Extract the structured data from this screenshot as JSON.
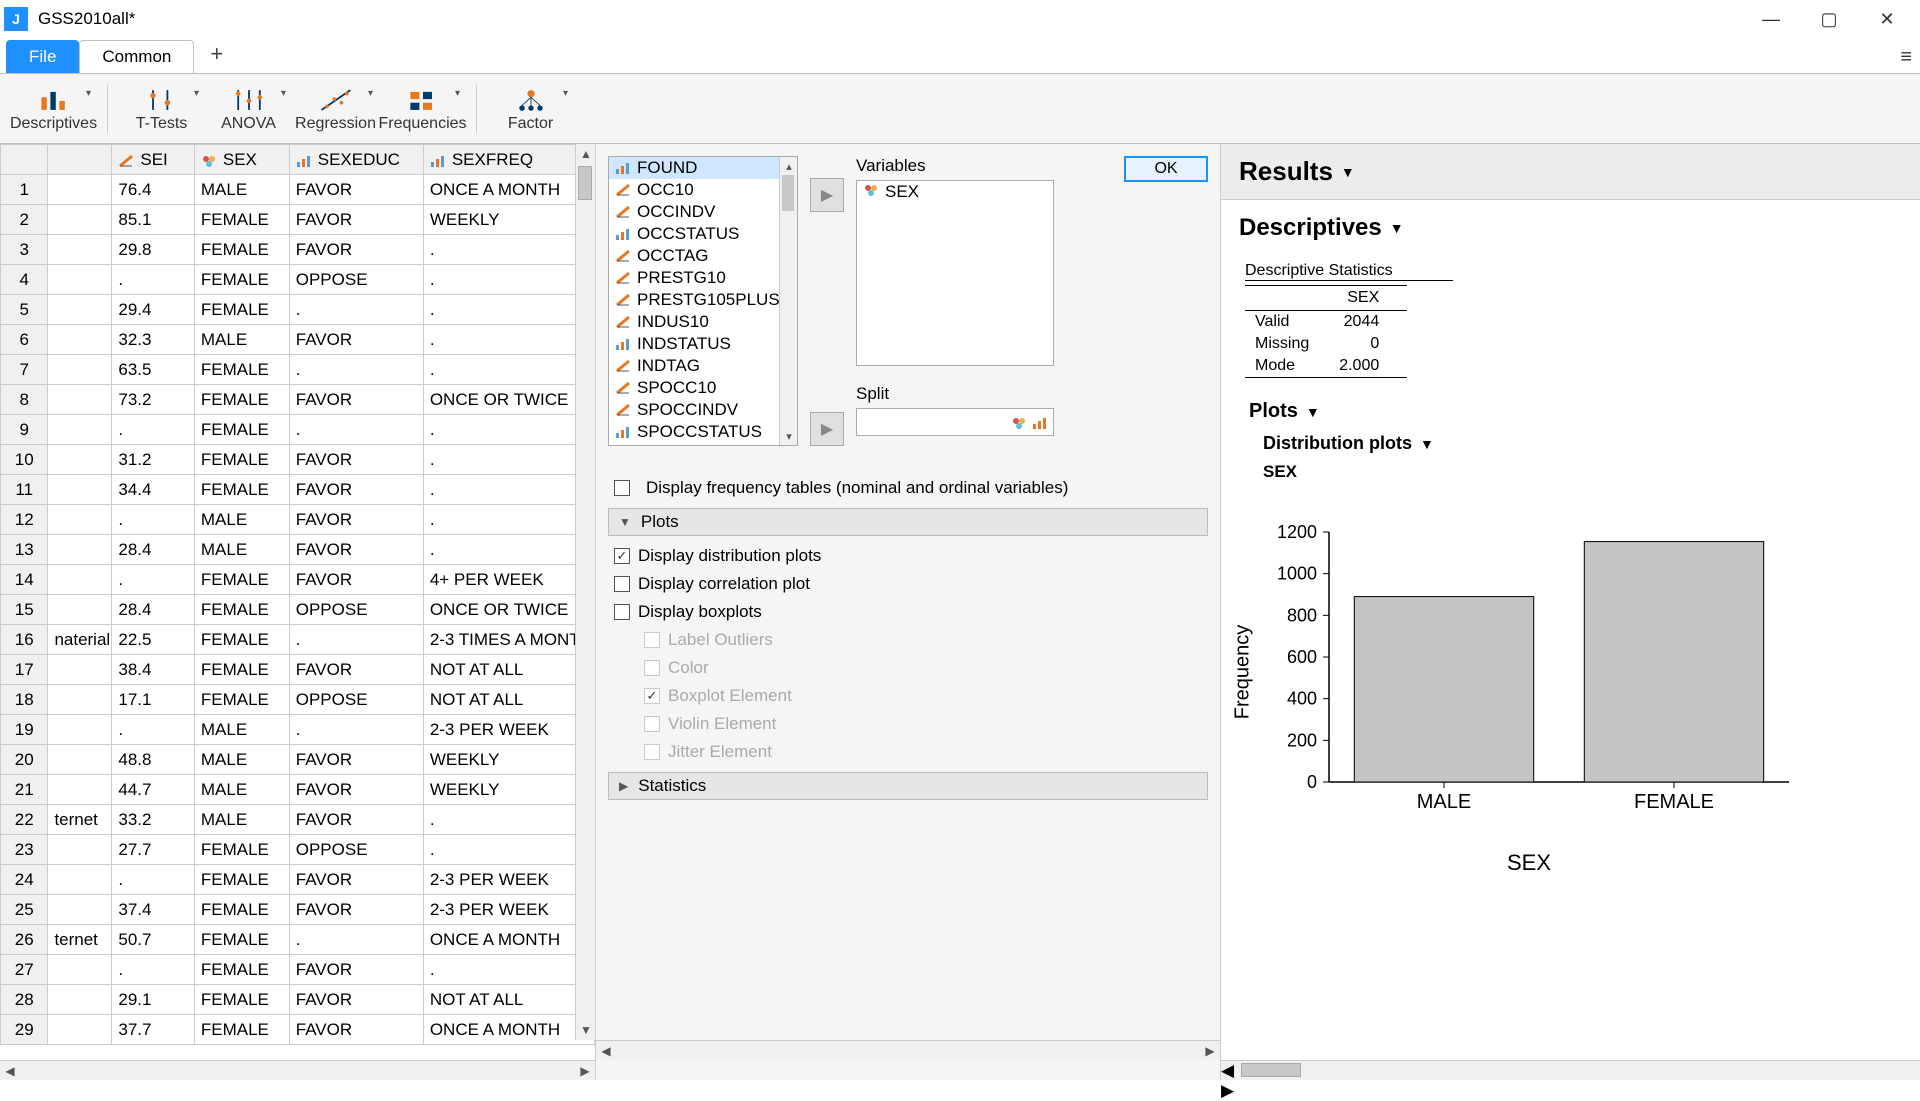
{
  "window": {
    "title": "GSS2010all*"
  },
  "tabs": {
    "file": "File",
    "common": "Common"
  },
  "ribbon": [
    {
      "label": "Descriptives"
    },
    {
      "label": "T-Tests"
    },
    {
      "label": "ANOVA"
    },
    {
      "label": "Regression"
    },
    {
      "label": "Frequencies"
    },
    {
      "label": "Factor"
    }
  ],
  "grid": {
    "extraCol": "",
    "columns": [
      {
        "name": "SEI",
        "type": "scale"
      },
      {
        "name": "SEX",
        "type": "nominal"
      },
      {
        "name": "SEXEDUC",
        "type": "ordinal"
      },
      {
        "name": "SEXFREQ",
        "type": "ordinal"
      }
    ],
    "rows": [
      {
        "n": 1,
        "c0": "",
        "sei": "76.4",
        "sex": "MALE",
        "sexeduc": "FAVOR",
        "sexfreq": "ONCE A MONTH"
      },
      {
        "n": 2,
        "c0": "",
        "sei": "85.1",
        "sex": "FEMALE",
        "sexeduc": "FAVOR",
        "sexfreq": "WEEKLY"
      },
      {
        "n": 3,
        "c0": "",
        "sei": "29.8",
        "sex": "FEMALE",
        "sexeduc": "FAVOR",
        "sexfreq": "."
      },
      {
        "n": 4,
        "c0": "",
        "sei": ".",
        "sex": "FEMALE",
        "sexeduc": "OPPOSE",
        "sexfreq": "."
      },
      {
        "n": 5,
        "c0": "",
        "sei": "29.4",
        "sex": "FEMALE",
        "sexeduc": ".",
        "sexfreq": "."
      },
      {
        "n": 6,
        "c0": "",
        "sei": "32.3",
        "sex": "MALE",
        "sexeduc": "FAVOR",
        "sexfreq": "."
      },
      {
        "n": 7,
        "c0": "",
        "sei": "63.5",
        "sex": "FEMALE",
        "sexeduc": ".",
        "sexfreq": "."
      },
      {
        "n": 8,
        "c0": "",
        "sei": "73.2",
        "sex": "FEMALE",
        "sexeduc": "FAVOR",
        "sexfreq": "ONCE OR TWICE"
      },
      {
        "n": 9,
        "c0": "",
        "sei": ".",
        "sex": "FEMALE",
        "sexeduc": ".",
        "sexfreq": "."
      },
      {
        "n": 10,
        "c0": "",
        "sei": "31.2",
        "sex": "FEMALE",
        "sexeduc": "FAVOR",
        "sexfreq": "."
      },
      {
        "n": 11,
        "c0": "",
        "sei": "34.4",
        "sex": "FEMALE",
        "sexeduc": "FAVOR",
        "sexfreq": "."
      },
      {
        "n": 12,
        "c0": "",
        "sei": ".",
        "sex": "MALE",
        "sexeduc": "FAVOR",
        "sexfreq": "."
      },
      {
        "n": 13,
        "c0": "",
        "sei": "28.4",
        "sex": "MALE",
        "sexeduc": "FAVOR",
        "sexfreq": "."
      },
      {
        "n": 14,
        "c0": "",
        "sei": ".",
        "sex": "FEMALE",
        "sexeduc": "FAVOR",
        "sexfreq": "4+ PER WEEK"
      },
      {
        "n": 15,
        "c0": "",
        "sei": "28.4",
        "sex": "FEMALE",
        "sexeduc": "OPPOSE",
        "sexfreq": "ONCE OR TWICE"
      },
      {
        "n": 16,
        "c0": "naterial",
        "sei": "22.5",
        "sex": "FEMALE",
        "sexeduc": ".",
        "sexfreq": "2-3 TIMES A MONTH"
      },
      {
        "n": 17,
        "c0": "",
        "sei": "38.4",
        "sex": "FEMALE",
        "sexeduc": "FAVOR",
        "sexfreq": "NOT AT ALL"
      },
      {
        "n": 18,
        "c0": "",
        "sei": "17.1",
        "sex": "FEMALE",
        "sexeduc": "OPPOSE",
        "sexfreq": "NOT AT ALL"
      },
      {
        "n": 19,
        "c0": "",
        "sei": ".",
        "sex": "MALE",
        "sexeduc": ".",
        "sexfreq": "2-3 PER WEEK"
      },
      {
        "n": 20,
        "c0": "",
        "sei": "48.8",
        "sex": "MALE",
        "sexeduc": "FAVOR",
        "sexfreq": "WEEKLY"
      },
      {
        "n": 21,
        "c0": "",
        "sei": "44.7",
        "sex": "MALE",
        "sexeduc": "FAVOR",
        "sexfreq": "WEEKLY"
      },
      {
        "n": 22,
        "c0": "ternet",
        "sei": "33.2",
        "sex": "MALE",
        "sexeduc": "FAVOR",
        "sexfreq": "."
      },
      {
        "n": 23,
        "c0": "",
        "sei": "27.7",
        "sex": "FEMALE",
        "sexeduc": "OPPOSE",
        "sexfreq": "."
      },
      {
        "n": 24,
        "c0": "",
        "sei": ".",
        "sex": "FEMALE",
        "sexeduc": "FAVOR",
        "sexfreq": "2-3 PER WEEK"
      },
      {
        "n": 25,
        "c0": "",
        "sei": "37.4",
        "sex": "FEMALE",
        "sexeduc": "FAVOR",
        "sexfreq": "2-3 PER WEEK"
      },
      {
        "n": 26,
        "c0": "ternet",
        "sei": "50.7",
        "sex": "FEMALE",
        "sexeduc": ".",
        "sexfreq": "ONCE A MONTH"
      },
      {
        "n": 27,
        "c0": "",
        "sei": ".",
        "sex": "FEMALE",
        "sexeduc": "FAVOR",
        "sexfreq": "."
      },
      {
        "n": 28,
        "c0": "",
        "sei": "29.1",
        "sex": "FEMALE",
        "sexeduc": "FAVOR",
        "sexfreq": "NOT AT ALL"
      },
      {
        "n": 29,
        "c0": "",
        "sei": "37.7",
        "sex": "FEMALE",
        "sexeduc": "FAVOR",
        "sexfreq": "ONCE A MONTH"
      }
    ]
  },
  "mid": {
    "ok": "OK",
    "varsLabel": "Variables",
    "splitLabel": "Split",
    "available": [
      {
        "name": "FOUND",
        "type": "ordinal",
        "sel": true
      },
      {
        "name": "OCC10",
        "type": "scale"
      },
      {
        "name": "OCCINDV",
        "type": "scale"
      },
      {
        "name": "OCCSTATUS",
        "type": "ordinal"
      },
      {
        "name": "OCCTAG",
        "type": "scale"
      },
      {
        "name": "PRESTG10",
        "type": "scale"
      },
      {
        "name": "PRESTG105PLUS",
        "type": "scale"
      },
      {
        "name": "INDUS10",
        "type": "scale"
      },
      {
        "name": "INDSTATUS",
        "type": "ordinal"
      },
      {
        "name": "INDTAG",
        "type": "scale"
      },
      {
        "name": "SPOCC10",
        "type": "scale"
      },
      {
        "name": "SPOCCINDV",
        "type": "scale"
      },
      {
        "name": "SPOCCSTATUS",
        "type": "ordinal"
      }
    ],
    "selectedVar": {
      "name": "SEX",
      "type": "nominal"
    },
    "freqTablesLabel": "Display frequency tables (nominal and ordinal variables)",
    "plotsHeader": "Plots",
    "statsHeader": "Statistics",
    "checks": {
      "dist": "Display distribution plots",
      "corr": "Display correlation plot",
      "box": "Display boxplots",
      "outl": "Label Outliers",
      "color": "Color",
      "boxel": "Boxplot Element",
      "viol": "Violin Element",
      "jit": "Jitter Element"
    }
  },
  "results": {
    "title": "Results",
    "desc": "Descriptives",
    "statTitle": "Descriptive Statistics",
    "statVar": "SEX",
    "stats": [
      {
        "label": "Valid",
        "value": "2044"
      },
      {
        "label": "Missing",
        "value": "0"
      },
      {
        "label": "Mode",
        "value": "2.000"
      }
    ],
    "plotsHeader": "Plots",
    "distHeader": "Distribution plots",
    "chartVar": "SEX",
    "chart": {
      "type": "bar",
      "categories": [
        "MALE",
        "FEMALE"
      ],
      "values": [
        890,
        1154
      ],
      "ylabel": "Frequency",
      "xlabel": "SEX",
      "ylim": [
        0,
        1200
      ],
      "yticks": [
        0,
        200,
        400,
        600,
        800,
        1000,
        1200
      ],
      "bar_fill": "#c4c4c4",
      "bar_stroke": "#000000",
      "axis_color": "#000000",
      "tick_font": 18,
      "label_font": 20,
      "xlabel_font": 22
    }
  }
}
